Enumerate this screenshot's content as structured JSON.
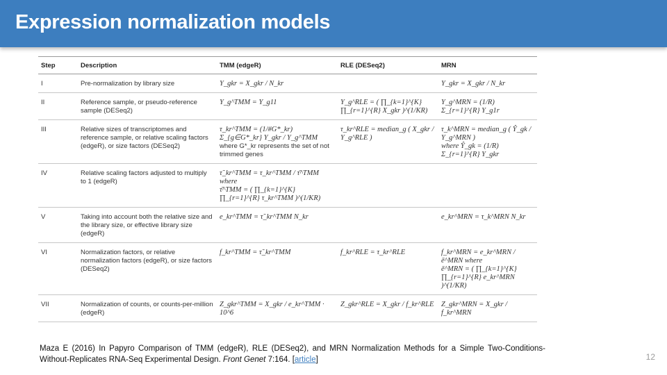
{
  "slide": {
    "title": "Expression normalization models",
    "number": "12"
  },
  "table": {
    "headers": [
      "Step",
      "Description",
      "TMM (edgeR)",
      "RLE (DESeq2)",
      "MRN"
    ],
    "rows": [
      {
        "step": "I",
        "description": "Pre-normalization by library size",
        "tmm": [
          "Y_gkr = X_gkr / N_kr"
        ],
        "rle": [],
        "mrn": [
          "Y_gkr = X_gkr / N_kr"
        ]
      },
      {
        "step": "II",
        "description": "Reference sample, or pseudo-reference sample (DESeq2)",
        "tmm": [
          "Y_g^TMM = Y_g11"
        ],
        "rle": [
          "Y_g^RLE = ( ∏_{k=1}^{K} ∏_{r=1}^{R} X_gkr )^(1/KR)"
        ],
        "mrn": [
          "Y_g^MRN = (1/R) Σ_{r=1}^{R} Y_g1r"
        ]
      },
      {
        "step": "III",
        "description": "Relative sizes of transcriptomes and reference sample, or relative scaling factors (edgeR), or size factors (DESeq2)",
        "tmm": [
          "τ_kr^TMM = (1/#G*_kr) Σ_{g∈G*_kr} Y_gkr / Y_g^TMM",
          "where G*_kr represents the set of not trimmed genes"
        ],
        "rle": [
          "τ_kr^RLE = median_g ( X_gkr / Y_g^RLE )"
        ],
        "mrn": [
          "τ_k^MRN = median_g ( Ŷ_gk / Y_g^MRN )",
          "where Ŷ_gk = (1/R) Σ_{r=1}^{R} Y_gkr"
        ]
      },
      {
        "step": "IV",
        "description": "Relative scaling factors adjusted to multiply to 1 (edgeR)",
        "tmm": [
          "τ̃_kr^TMM = τ_kr^TMM / τ̄^TMM  where",
          "τ̄^TMM = ( ∏_{k=1}^{K} ∏_{r=1}^{R} τ_kr^TMM )^(1/KR)"
        ],
        "rle": [],
        "mrn": []
      },
      {
        "step": "V",
        "description": "Taking into account both the relative size and the library size, or effective library size (edgeR)",
        "tmm": [
          "e_kr^TMM = τ̃_kr^TMM N_kr"
        ],
        "rle": [],
        "mrn": [
          "e_kr^MRN = τ_k^MRN N_kr"
        ]
      },
      {
        "step": "VI",
        "description": "Normalization factors, or relative normalization factors (edgeR), or size factors (DESeq2)",
        "tmm": [
          "f_kr^TMM = τ̃_kr^TMM"
        ],
        "rle": [
          "f_kr^RLE = τ_kr^RLE"
        ],
        "mrn": [
          "f_kr^MRN = e_kr^MRN / ē^MRN  where",
          "ē^MRN = ( ∏_{k=1}^{K} ∏_{r=1}^{R} e_kr^MRN )^(1/KR)"
        ]
      },
      {
        "step": "VII",
        "description": "Normalization of counts, or counts-per-million (edgeR)",
        "tmm": [
          "Z_gkr^TMM = X_gkr / e_kr^TMM · 10^6"
        ],
        "rle": [
          "Z_gkr^RLE = X_gkr / f_kr^RLE"
        ],
        "mrn": [
          "Z_gkr^MRN = X_gkr / f_kr^MRN"
        ]
      }
    ]
  },
  "citation": {
    "authors_year": "Maza E (2016) In Papyro Comparison of TMM (edgeR), RLE (DESeq2), and MRN Normalization Methods for a Simple Two-Conditions-Without-Replicates RNA-Seq Experimental Design.",
    "journal": "Front Genet",
    "volume": "7:164. [",
    "link_label": "article",
    "closing": "]"
  }
}
